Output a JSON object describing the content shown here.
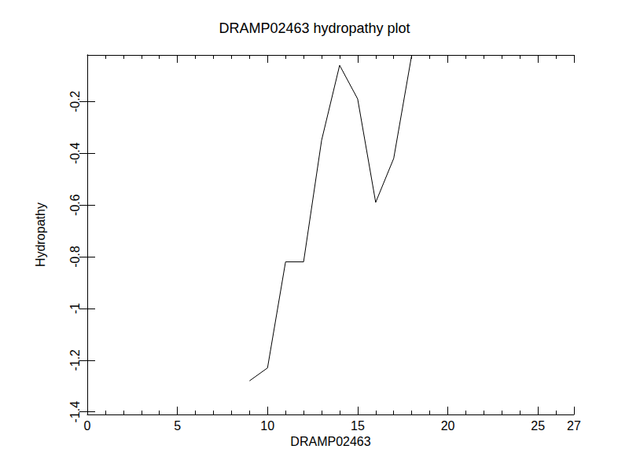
{
  "chart_data": {
    "type": "line",
    "title": "DRAMP02463 hydropathy plot",
    "x_label": "DRAMP02463",
    "y_label": "Hydropathy",
    "x": [
      9,
      10,
      11,
      12,
      13,
      14,
      15,
      16,
      17,
      18
    ],
    "values": [
      -1.28,
      -1.23,
      -0.82,
      -0.82,
      -0.35,
      -0.06,
      -0.19,
      -0.59,
      -0.42,
      -0.02
    ],
    "color": "#000000",
    "xlim": [
      0,
      27
    ],
    "xticks": [
      0,
      5,
      10,
      15,
      20,
      25
    ],
    "ylim": [
      -1.41,
      -0.02
    ],
    "yticks": [
      -1.4,
      -1.2,
      -1.0,
      -0.8,
      -0.6,
      -0.4,
      -0.2
    ],
    "grid": false
  }
}
